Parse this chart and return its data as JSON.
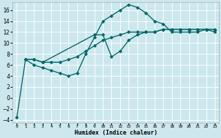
{
  "xlabel": "Humidex (Indice chaleur)",
  "bg_color": "#cce8ee",
  "line_color": "#006666",
  "xlim": [
    -0.5,
    23.5
  ],
  "ylim": [
    -4.5,
    17.5
  ],
  "yticks": [
    -4,
    -2,
    0,
    2,
    4,
    6,
    8,
    10,
    12,
    14,
    16
  ],
  "xticks": [
    0,
    1,
    2,
    3,
    4,
    5,
    6,
    7,
    8,
    9,
    10,
    11,
    12,
    13,
    14,
    15,
    16,
    17,
    18,
    19,
    20,
    21,
    22,
    23
  ],
  "curve1_x": [
    0,
    1,
    2,
    3,
    4,
    5,
    6,
    7,
    8,
    9,
    10,
    11,
    12,
    13,
    14,
    15,
    16,
    17,
    18,
    19,
    20,
    21,
    22,
    23
  ],
  "curve1_y": [
    -3.5,
    7.0,
    6.0,
    5.5,
    5.0,
    4.5,
    4.0,
    4.5,
    8.0,
    11.0,
    14.0,
    15.0,
    16.0,
    17.0,
    16.5,
    15.5,
    14.0,
    13.5,
    12.0,
    12.0,
    12.0,
    12.0,
    12.5,
    12.0
  ],
  "curve2_x": [
    1,
    2,
    3,
    4,
    5,
    6,
    7,
    8,
    9,
    10,
    11,
    12,
    13,
    14,
    15,
    16,
    17,
    18,
    19,
    20,
    21,
    22,
    23
  ],
  "curve2_y": [
    7.0,
    7.0,
    6.5,
    6.5,
    6.5,
    7.0,
    7.5,
    8.5,
    9.5,
    10.5,
    11.0,
    11.5,
    12.0,
    12.0,
    12.0,
    12.0,
    12.5,
    12.5,
    12.5,
    12.5,
    12.5,
    12.5,
    12.5
  ],
  "curve3_x": [
    1,
    2,
    3,
    9,
    10,
    11,
    12,
    13,
    14,
    15,
    16,
    17,
    18,
    19,
    20,
    21,
    22,
    23
  ],
  "curve3_y": [
    7.0,
    7.0,
    6.5,
    11.5,
    11.5,
    7.5,
    8.5,
    10.5,
    11.5,
    12.0,
    12.0,
    12.5,
    12.5,
    12.5,
    12.5,
    12.5,
    12.5,
    12.5
  ],
  "markersize": 2.5,
  "linewidth": 1.0
}
